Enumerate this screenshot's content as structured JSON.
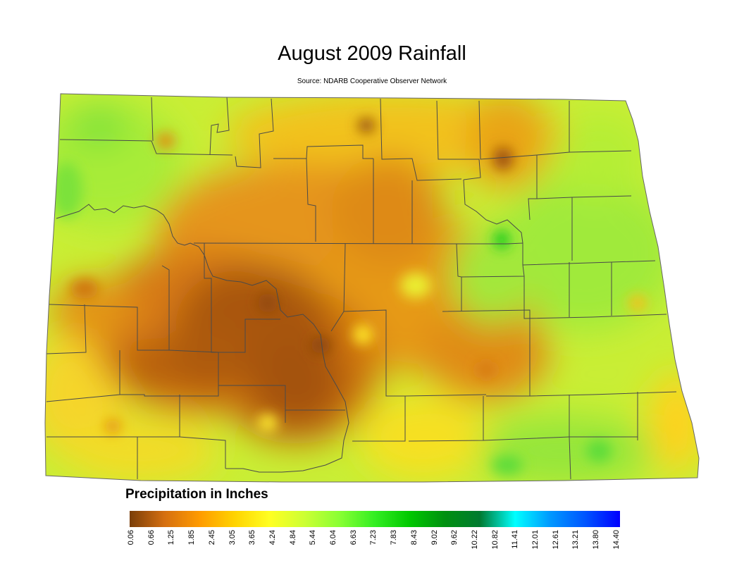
{
  "title": "August 2009 Rainfall",
  "subtitle": "Source: NDARB Cooperative Observer Network",
  "legend": {
    "title": "Precipitation in Inches",
    "ticks": [
      "0.06",
      "0.66",
      "1.25",
      "1.85",
      "2.45",
      "3.05",
      "3.65",
      "4.24",
      "4.84",
      "5.44",
      "6.04",
      "6.63",
      "7.23",
      "7.83",
      "8.43",
      "9.02",
      "9.62",
      "10.22",
      "10.82",
      "11.41",
      "12.01",
      "12.61",
      "13.21",
      "13.80",
      "14.40"
    ],
    "colors": [
      "#7a3e08",
      "#d56f10",
      "#ff9b00",
      "#ffd300",
      "#ffff22",
      "#ccff33",
      "#88ff33",
      "#33ee22",
      "#00c800",
      "#009010",
      "#007a30",
      "#00ffff",
      "#0099ff",
      "#0055ff",
      "#0000ff"
    ]
  },
  "colors": {
    "dark_brown": "#9a4d0e",
    "orange": "#e18b12",
    "yellow_orange": "#f2c21a",
    "yellow": "#ffee22",
    "yellow_green": "#ccee33",
    "green": "#7ee33a",
    "bright_green": "#22cc22",
    "county_lines": "#4a4a4a"
  }
}
